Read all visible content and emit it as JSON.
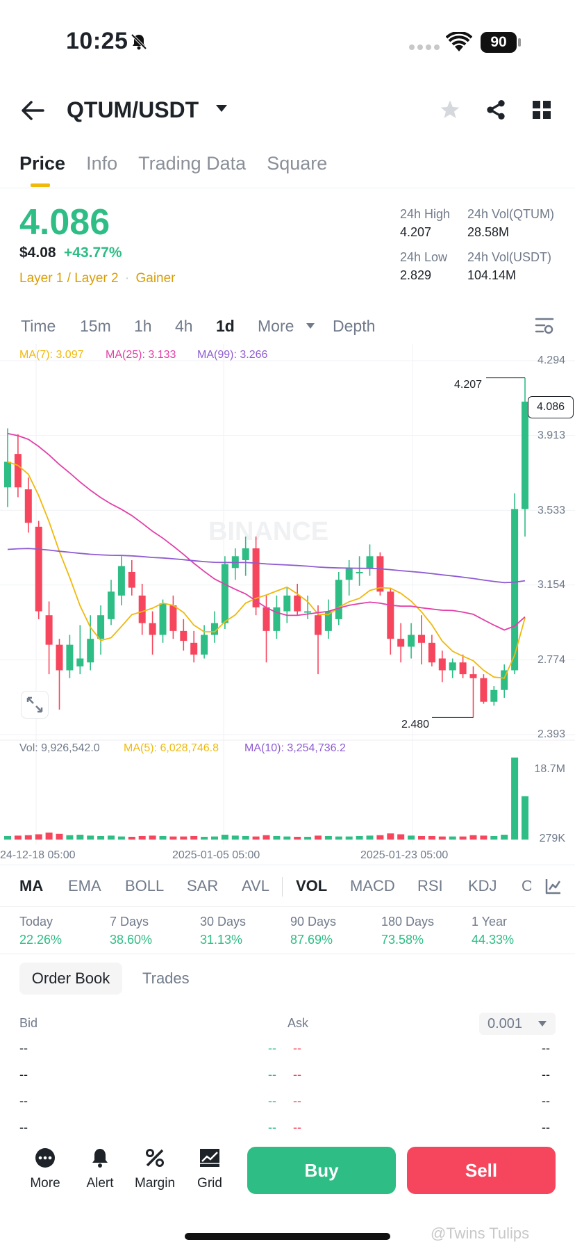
{
  "status_bar": {
    "time": "10:25",
    "battery": "90"
  },
  "header": {
    "pair": "QTUM/USDT"
  },
  "tabs": [
    "Price",
    "Info",
    "Trading Data",
    "Square"
  ],
  "price": {
    "last": "4.086",
    "fiat": "$4.08",
    "change": "+43.77%",
    "tag_category": "Layer 1 / Layer 2",
    "tag_sep": "·",
    "tag_status": "Gainer"
  },
  "stats": {
    "high_label": "24h High",
    "high": "4.207",
    "vol_base_label": "24h Vol(QTUM)",
    "vol_base": "28.58M",
    "low_label": "24h Low",
    "low": "2.829",
    "vol_quote_label": "24h Vol(USDT)",
    "vol_quote": "104.14M"
  },
  "intervals": {
    "time": "Time",
    "m15": "15m",
    "h1": "1h",
    "h4": "4h",
    "d1": "1d",
    "more": "More",
    "depth": "Depth"
  },
  "ma_legend": {
    "ma7": "MA(7): 3.097",
    "ma25": "MA(25): 3.133",
    "ma99": "MA(99): 3.266"
  },
  "vol_legend": {
    "vol": "Vol: 9,926,542.0",
    "ma5": "MA(5): 6,028,746.8",
    "ma10": "MA(10): 3,254,736.2"
  },
  "watermark_text": "BINANCE",
  "chart_data": {
    "type": "candlestick",
    "y_ticks": [
      "4.294",
      "3.913",
      "3.533",
      "3.154",
      "2.774",
      "2.393"
    ],
    "ylim": [
      2.393,
      4.294
    ],
    "x_labels": [
      "24-12-18 05:00",
      "2025-01-05 05:00",
      "2025-01-23 05:00"
    ],
    "last_price_label": "4.086",
    "high_marker": "4.207",
    "low_marker": "2.480",
    "vol_ticks": [
      "18.7M",
      "279K"
    ],
    "colors": {
      "up": "#2ebd85",
      "down": "#f6465d",
      "ma7": "#f0b90b",
      "ma25": "#e23fa8",
      "ma99": "#8e5cd1"
    },
    "candles": [
      {
        "o": 3.65,
        "h": 3.95,
        "l": 3.55,
        "c": 3.78
      },
      {
        "o": 3.82,
        "h": 3.92,
        "l": 3.6,
        "c": 3.65
      },
      {
        "o": 3.64,
        "h": 3.7,
        "l": 3.42,
        "c": 3.47
      },
      {
        "o": 3.45,
        "h": 3.48,
        "l": 2.98,
        "c": 3.02
      },
      {
        "o": 3.0,
        "h": 3.07,
        "l": 2.7,
        "c": 2.85
      },
      {
        "o": 2.85,
        "h": 2.88,
        "l": 2.52,
        "c": 2.72
      },
      {
        "o": 2.72,
        "h": 2.9,
        "l": 2.68,
        "c": 2.85
      },
      {
        "o": 2.74,
        "h": 2.95,
        "l": 2.7,
        "c": 2.78
      },
      {
        "o": 2.76,
        "h": 3.0,
        "l": 2.72,
        "c": 2.88
      },
      {
        "o": 2.88,
        "h": 3.05,
        "l": 2.8,
        "c": 3.0
      },
      {
        "o": 2.98,
        "h": 3.18,
        "l": 2.95,
        "c": 3.12
      },
      {
        "o": 3.1,
        "h": 3.3,
        "l": 3.05,
        "c": 3.25
      },
      {
        "o": 3.22,
        "h": 3.28,
        "l": 3.1,
        "c": 3.14
      },
      {
        "o": 3.1,
        "h": 3.16,
        "l": 2.9,
        "c": 2.96
      },
      {
        "o": 2.96,
        "h": 3.02,
        "l": 2.8,
        "c": 2.9
      },
      {
        "o": 2.9,
        "h": 3.08,
        "l": 2.86,
        "c": 3.06
      },
      {
        "o": 3.05,
        "h": 3.1,
        "l": 2.88,
        "c": 2.92
      },
      {
        "o": 2.92,
        "h": 2.98,
        "l": 2.82,
        "c": 2.87
      },
      {
        "o": 2.86,
        "h": 2.92,
        "l": 2.76,
        "c": 2.8
      },
      {
        "o": 2.8,
        "h": 2.95,
        "l": 2.78,
        "c": 2.9
      },
      {
        "o": 2.9,
        "h": 3.02,
        "l": 2.86,
        "c": 2.96
      },
      {
        "o": 2.96,
        "h": 3.3,
        "l": 2.93,
        "c": 3.26
      },
      {
        "o": 3.24,
        "h": 3.34,
        "l": 3.18,
        "c": 3.3
      },
      {
        "o": 3.28,
        "h": 3.4,
        "l": 3.2,
        "c": 3.34
      },
      {
        "o": 3.34,
        "h": 3.4,
        "l": 3.0,
        "c": 3.04
      },
      {
        "o": 3.04,
        "h": 3.1,
        "l": 2.76,
        "c": 2.92
      },
      {
        "o": 2.92,
        "h": 3.1,
        "l": 2.88,
        "c": 3.04
      },
      {
        "o": 3.02,
        "h": 3.14,
        "l": 2.96,
        "c": 3.1
      },
      {
        "o": 3.1,
        "h": 3.16,
        "l": 3.0,
        "c": 3.02
      },
      {
        "o": 3.02,
        "h": 3.1,
        "l": 2.98,
        "c": 3.02
      },
      {
        "o": 3.0,
        "h": 3.05,
        "l": 2.7,
        "c": 2.9
      },
      {
        "o": 2.92,
        "h": 3.08,
        "l": 2.88,
        "c": 3.02
      },
      {
        "o": 2.98,
        "h": 3.22,
        "l": 2.95,
        "c": 3.18
      },
      {
        "o": 3.18,
        "h": 3.28,
        "l": 3.1,
        "c": 3.24
      },
      {
        "o": 3.22,
        "h": 3.3,
        "l": 3.15,
        "c": 3.22
      },
      {
        "o": 3.24,
        "h": 3.36,
        "l": 3.2,
        "c": 3.3
      },
      {
        "o": 3.3,
        "h": 3.32,
        "l": 3.1,
        "c": 3.12
      },
      {
        "o": 3.12,
        "h": 3.14,
        "l": 2.8,
        "c": 2.88
      },
      {
        "o": 2.88,
        "h": 2.96,
        "l": 2.76,
        "c": 2.84
      },
      {
        "o": 2.84,
        "h": 2.96,
        "l": 2.78,
        "c": 2.9
      },
      {
        "o": 2.9,
        "h": 3.0,
        "l": 2.75,
        "c": 2.86
      },
      {
        "o": 2.86,
        "h": 2.9,
        "l": 2.74,
        "c": 2.76
      },
      {
        "o": 2.78,
        "h": 2.82,
        "l": 2.66,
        "c": 2.72
      },
      {
        "o": 2.72,
        "h": 2.78,
        "l": 2.68,
        "c": 2.76
      },
      {
        "o": 2.76,
        "h": 2.8,
        "l": 2.68,
        "c": 2.7
      },
      {
        "o": 2.7,
        "h": 2.74,
        "l": 2.48,
        "c": 2.68
      },
      {
        "o": 2.68,
        "h": 2.7,
        "l": 2.55,
        "c": 2.56
      },
      {
        "o": 2.56,
        "h": 2.64,
        "l": 2.54,
        "c": 2.62
      },
      {
        "o": 2.62,
        "h": 2.75,
        "l": 2.58,
        "c": 2.72
      },
      {
        "o": 2.72,
        "h": 3.62,
        "l": 2.7,
        "c": 3.54
      },
      {
        "o": 3.54,
        "h": 4.207,
        "l": 3.4,
        "c": 4.086
      }
    ],
    "volumes": [
      0.8,
      0.9,
      1.0,
      1.2,
      1.6,
      1.3,
      1.0,
      1.1,
      0.9,
      0.8,
      0.9,
      0.7,
      0.6,
      0.8,
      0.9,
      0.8,
      0.7,
      0.7,
      0.8,
      0.6,
      0.7,
      1.1,
      0.9,
      0.8,
      0.7,
      1.0,
      0.8,
      0.7,
      0.6,
      0.6,
      0.9,
      0.8,
      0.7,
      0.7,
      0.8,
      0.9,
      1.0,
      1.4,
      1.2,
      0.9,
      0.8,
      0.8,
      0.7,
      0.7,
      0.7,
      1.0,
      0.9,
      0.8,
      1.1,
      18.7,
      9.9
    ]
  },
  "indicators": [
    "MA",
    "EMA",
    "BOLL",
    "SAR",
    "AVL",
    "VOL",
    "MACD",
    "RSI",
    "KDJ",
    "O"
  ],
  "performance": [
    {
      "label": "Today",
      "value": "22.26%"
    },
    {
      "label": "7 Days",
      "value": "38.60%"
    },
    {
      "label": "30 Days",
      "value": "31.13%"
    },
    {
      "label": "90 Days",
      "value": "87.69%"
    },
    {
      "label": "180 Days",
      "value": "73.58%"
    },
    {
      "label": "1 Year",
      "value": "44.33%"
    }
  ],
  "order_book": {
    "tab_orderbook": "Order Book",
    "tab_trades": "Trades",
    "bid_label": "Bid",
    "ask_label": "Ask",
    "precision": "0.001",
    "placeholder": "--"
  },
  "bottom_nav": {
    "more": "More",
    "alert": "Alert",
    "margin": "Margin",
    "grid": "Grid",
    "buy": "Buy",
    "sell": "Sell"
  },
  "watermark": "@Twins Tulips"
}
